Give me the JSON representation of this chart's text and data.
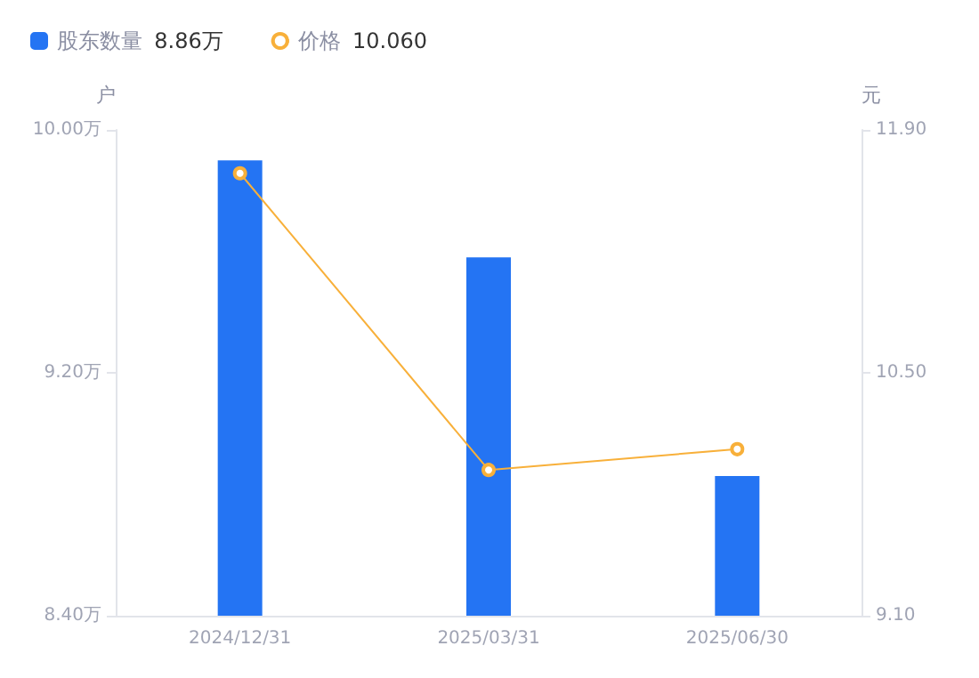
{
  "chart_data": {
    "type": "bar",
    "ylabel": "户",
    "y2label": "元",
    "categories": [
      "2024/12/31",
      "2025/03/31",
      "2025/06/30"
    ],
    "series": [
      {
        "name": "股东数量",
        "color": "#2474f3",
        "values": [
          9.9,
          9.58,
          8.86
        ]
      },
      {
        "name": "价格",
        "type": "line",
        "axis": "y2",
        "color": "#f8b03a",
        "values": [
          11.65,
          9.94,
          10.06
        ]
      }
    ],
    "ylim": [
      8.4,
      10
    ],
    "yticks": [
      {
        "value": 8.4,
        "label": "8.40万"
      },
      {
        "value": 9.2,
        "label": "9.20万"
      },
      {
        "value": 10,
        "label": "10.00万"
      }
    ],
    "y2lim": [
      9.1,
      11.9
    ],
    "y2ticks": [
      {
        "value": 9.1,
        "label": "9.10"
      },
      {
        "value": 10.5,
        "label": "10.50"
      },
      {
        "value": 11.9,
        "label": "11.90"
      }
    ],
    "annotations": [
      "8.86万",
      "10.060"
    ],
    "legend": "top left",
    "grid": false,
    "marker": "circle",
    "line_style": "solid"
  }
}
